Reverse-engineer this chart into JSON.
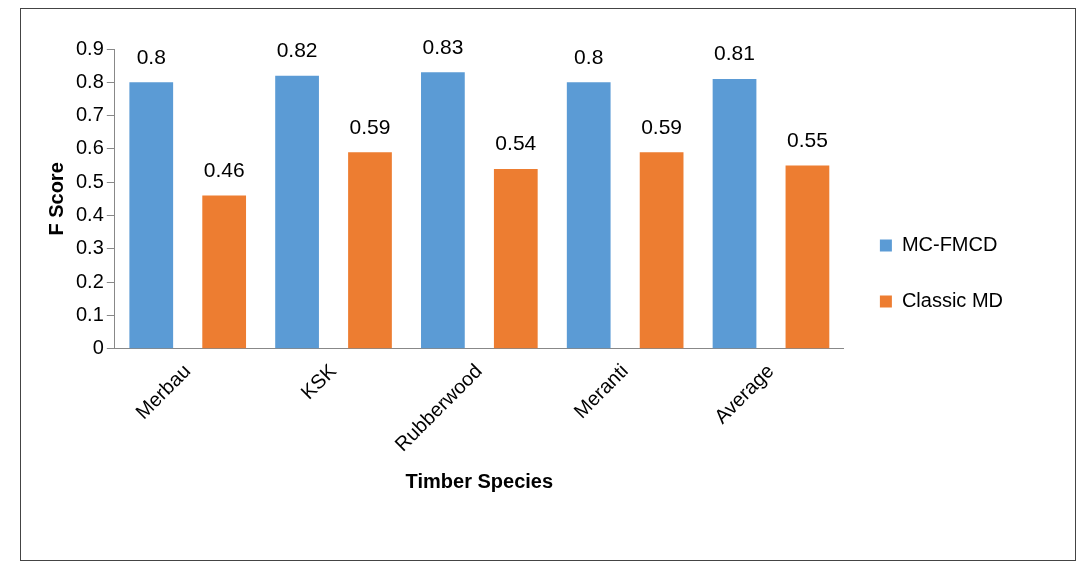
{
  "chart_data": {
    "type": "bar",
    "xlabel": "Timber Species",
    "ylabel": "F Score",
    "categories": [
      "Merbau",
      "KSK",
      "Rubberwood",
      "Meranti",
      "Average"
    ],
    "series": [
      {
        "name": "MC-FMCD",
        "color": "#5b9bd5",
        "values": [
          0.8,
          0.82,
          0.83,
          0.8,
          0.81
        ]
      },
      {
        "name": "Classic MD",
        "color": "#ed7d31",
        "values": [
          0.46,
          0.59,
          0.54,
          0.59,
          0.55
        ]
      }
    ],
    "ylim": [
      0,
      0.9
    ],
    "yticks": [
      0,
      0.1,
      0.2,
      0.3,
      0.4,
      0.5,
      0.6,
      0.7,
      0.8,
      0.9
    ],
    "grid": false,
    "legend": "right",
    "data_labels": true
  }
}
